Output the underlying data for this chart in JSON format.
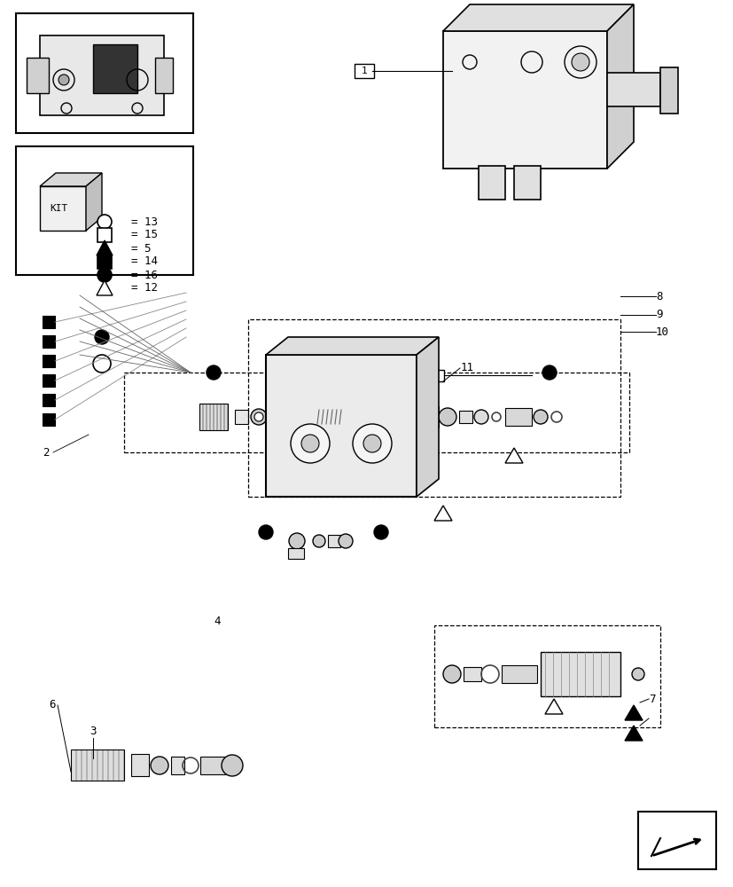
{
  "title": "",
  "background_color": "#ffffff",
  "line_color": "#000000",
  "light_line_color": "#aaaaaa",
  "fig_width": 8.28,
  "fig_height": 10.0,
  "legend_items": [
    {
      "symbol": "circle_open",
      "label": "= 13"
    },
    {
      "symbol": "square_open",
      "label": "= 15"
    },
    {
      "symbol": "triangle_filled",
      "label": "= 5"
    },
    {
      "symbol": "square_filled",
      "label": "= 14"
    },
    {
      "symbol": "circle_filled",
      "label": "= 16"
    },
    {
      "symbol": "triangle_open",
      "label": "= 12"
    }
  ],
  "part_labels": [
    "1",
    "2",
    "3",
    "4",
    "6",
    "7",
    "8",
    "9",
    "10",
    "11"
  ]
}
